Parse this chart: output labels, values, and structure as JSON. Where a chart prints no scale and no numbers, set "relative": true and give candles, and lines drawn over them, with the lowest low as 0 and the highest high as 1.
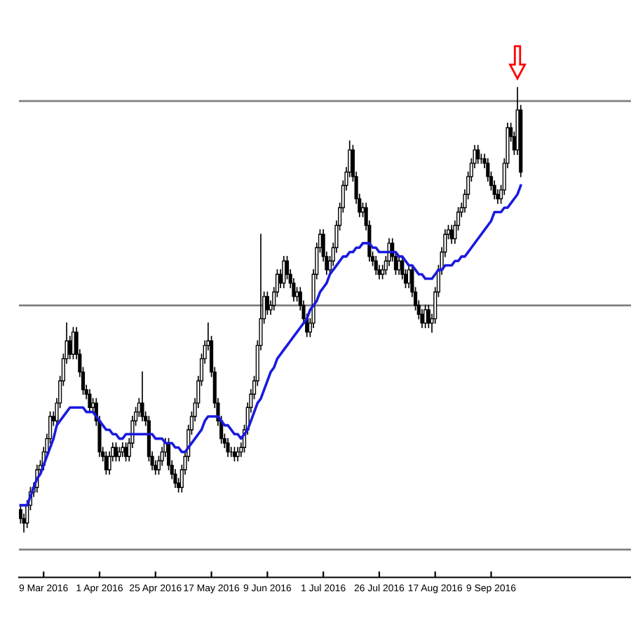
{
  "chart_data": {
    "type": "candlestick",
    "relative": true,
    "tick_labels": "x",
    "grid": false,
    "legend": false,
    "categories": [
      null,
      null,
      null,
      null,
      null,
      null,
      null,
      "9 Mar 2016",
      null,
      null,
      null,
      null,
      null,
      null,
      null,
      null,
      null,
      null,
      null,
      null,
      null,
      null,
      null,
      null,
      "1 Apr 2016",
      null,
      null,
      null,
      null,
      null,
      null,
      null,
      null,
      null,
      null,
      null,
      null,
      null,
      null,
      null,
      null,
      "25 Apr 2016",
      null,
      null,
      null,
      null,
      null,
      null,
      null,
      null,
      null,
      null,
      null,
      null,
      null,
      null,
      null,
      null,
      "17 May 2016",
      null,
      null,
      null,
      null,
      null,
      null,
      null,
      null,
      null,
      null,
      null,
      null,
      null,
      null,
      null,
      null,
      "9 Jun 2016",
      null,
      null,
      null,
      null,
      null,
      null,
      null,
      null,
      null,
      null,
      null,
      null,
      null,
      null,
      null,
      null,
      "1 Jul 2016",
      null,
      null,
      null,
      null,
      null,
      null,
      null,
      null,
      null,
      null,
      null,
      null,
      null,
      null,
      null,
      null,
      "26 Jul 2016",
      null,
      null,
      null,
      null,
      null,
      null,
      null,
      null,
      null,
      null,
      null,
      null,
      null,
      null,
      null,
      null,
      "17 Aug 2016",
      null,
      null,
      null,
      null,
      null,
      null,
      null,
      null,
      null,
      null,
      null,
      null,
      null,
      null,
      null,
      null,
      "9 Sep 2016",
      null,
      null,
      null,
      null,
      null,
      null,
      null,
      null,
      null,
      null,
      null,
      null,
      null,
      null,
      null,
      null,
      null,
      null,
      null,
      null,
      null,
      null,
      null,
      null,
      null,
      null,
      null,
      null,
      null,
      null,
      null,
      null,
      null,
      null,
      null,
      null,
      null,
      null,
      null,
      null,
      null,
      null
    ],
    "ohlc": [
      [
        0.05,
        0.06,
        0.02,
        0.03
      ],
      [
        0.03,
        0.04,
        0.0,
        0.02
      ],
      [
        0.02,
        0.07,
        0.01,
        0.06
      ],
      [
        0.06,
        0.1,
        0.05,
        0.09
      ],
      [
        0.09,
        0.11,
        0.08,
        0.1
      ],
      [
        0.1,
        0.15,
        0.09,
        0.14
      ],
      [
        0.14,
        0.16,
        0.13,
        0.15
      ],
      [
        0.15,
        0.19,
        0.14,
        0.18
      ],
      [
        0.18,
        0.22,
        0.17,
        0.21
      ],
      [
        0.21,
        0.27,
        0.2,
        0.26
      ],
      [
        0.26,
        0.27,
        0.24,
        0.25
      ],
      [
        0.25,
        0.3,
        0.24,
        0.29
      ],
      [
        0.29,
        0.35,
        0.28,
        0.34
      ],
      [
        0.34,
        0.4,
        0.33,
        0.39
      ],
      [
        0.39,
        0.47,
        0.38,
        0.43
      ],
      [
        0.43,
        0.44,
        0.39,
        0.4
      ],
      [
        0.4,
        0.46,
        0.39,
        0.45
      ],
      [
        0.45,
        0.46,
        0.39,
        0.4
      ],
      [
        0.4,
        0.41,
        0.35,
        0.36
      ],
      [
        0.36,
        0.37,
        0.31,
        0.32
      ],
      [
        0.32,
        0.33,
        0.3,
        0.31
      ],
      [
        0.31,
        0.32,
        0.27,
        0.28
      ],
      [
        0.28,
        0.3,
        0.27,
        0.29
      ],
      [
        0.29,
        0.3,
        0.24,
        0.25
      ],
      [
        0.25,
        0.26,
        0.17,
        0.18
      ],
      [
        0.18,
        0.19,
        0.16,
        0.17
      ],
      [
        0.17,
        0.18,
        0.13,
        0.14
      ],
      [
        0.14,
        0.18,
        0.13,
        0.17
      ],
      [
        0.17,
        0.2,
        0.16,
        0.19
      ],
      [
        0.19,
        0.2,
        0.16,
        0.17
      ],
      [
        0.17,
        0.19,
        0.16,
        0.18
      ],
      [
        0.18,
        0.2,
        0.17,
        0.19
      ],
      [
        0.19,
        0.2,
        0.16,
        0.17
      ],
      [
        0.17,
        0.21,
        0.16,
        0.2
      ],
      [
        0.2,
        0.26,
        0.19,
        0.25
      ],
      [
        0.25,
        0.28,
        0.24,
        0.27
      ],
      [
        0.27,
        0.3,
        0.26,
        0.29
      ],
      [
        0.29,
        0.36,
        0.25,
        0.26
      ],
      [
        0.26,
        0.27,
        0.24,
        0.25
      ],
      [
        0.25,
        0.26,
        0.16,
        0.17
      ],
      [
        0.17,
        0.18,
        0.14,
        0.15
      ],
      [
        0.15,
        0.16,
        0.13,
        0.14
      ],
      [
        0.14,
        0.17,
        0.13,
        0.16
      ],
      [
        0.16,
        0.19,
        0.15,
        0.18
      ],
      [
        0.18,
        0.21,
        0.17,
        0.2
      ],
      [
        0.2,
        0.21,
        0.14,
        0.15
      ],
      [
        0.15,
        0.16,
        0.12,
        0.13
      ],
      [
        0.13,
        0.14,
        0.1,
        0.11
      ],
      [
        0.11,
        0.12,
        0.09,
        0.1
      ],
      [
        0.1,
        0.15,
        0.09,
        0.14
      ],
      [
        0.14,
        0.18,
        0.13,
        0.17
      ],
      [
        0.17,
        0.24,
        0.16,
        0.23
      ],
      [
        0.23,
        0.27,
        0.22,
        0.26
      ],
      [
        0.26,
        0.3,
        0.25,
        0.29
      ],
      [
        0.29,
        0.35,
        0.28,
        0.34
      ],
      [
        0.34,
        0.4,
        0.33,
        0.39
      ],
      [
        0.39,
        0.43,
        0.38,
        0.42
      ],
      [
        0.42,
        0.47,
        0.41,
        0.43
      ],
      [
        0.43,
        0.44,
        0.35,
        0.36
      ],
      [
        0.36,
        0.37,
        0.28,
        0.29
      ],
      [
        0.29,
        0.3,
        0.24,
        0.25
      ],
      [
        0.25,
        0.26,
        0.2,
        0.21
      ],
      [
        0.21,
        0.22,
        0.19,
        0.2
      ],
      [
        0.2,
        0.21,
        0.17,
        0.18
      ],
      [
        0.18,
        0.19,
        0.17,
        0.18
      ],
      [
        0.18,
        0.19,
        0.16,
        0.17
      ],
      [
        0.17,
        0.19,
        0.16,
        0.18
      ],
      [
        0.18,
        0.2,
        0.17,
        0.19
      ],
      [
        0.19,
        0.24,
        0.18,
        0.23
      ],
      [
        0.23,
        0.29,
        0.22,
        0.28
      ],
      [
        0.28,
        0.32,
        0.27,
        0.31
      ],
      [
        0.31,
        0.35,
        0.3,
        0.34
      ],
      [
        0.34,
        0.43,
        0.33,
        0.42
      ],
      [
        0.42,
        0.67,
        0.41,
        0.48
      ],
      [
        0.48,
        0.54,
        0.47,
        0.53
      ],
      [
        0.53,
        0.54,
        0.49,
        0.5
      ],
      [
        0.5,
        0.52,
        0.49,
        0.51
      ],
      [
        0.51,
        0.55,
        0.5,
        0.54
      ],
      [
        0.54,
        0.59,
        0.53,
        0.58
      ],
      [
        0.58,
        0.59,
        0.55,
        0.56
      ],
      [
        0.56,
        0.62,
        0.55,
        0.61
      ],
      [
        0.61,
        0.62,
        0.57,
        0.58
      ],
      [
        0.58,
        0.59,
        0.55,
        0.56
      ],
      [
        0.56,
        0.57,
        0.52,
        0.53
      ],
      [
        0.53,
        0.55,
        0.52,
        0.54
      ],
      [
        0.54,
        0.55,
        0.5,
        0.51
      ],
      [
        0.51,
        0.52,
        0.47,
        0.48
      ],
      [
        0.48,
        0.49,
        0.44,
        0.45
      ],
      [
        0.45,
        0.48,
        0.44,
        0.47
      ],
      [
        0.47,
        0.59,
        0.46,
        0.58
      ],
      [
        0.58,
        0.65,
        0.57,
        0.64
      ],
      [
        0.64,
        0.68,
        0.63,
        0.67
      ],
      [
        0.67,
        0.68,
        0.61,
        0.62
      ],
      [
        0.62,
        0.63,
        0.58,
        0.59
      ],
      [
        0.59,
        0.62,
        0.58,
        0.61
      ],
      [
        0.61,
        0.65,
        0.6,
        0.64
      ],
      [
        0.64,
        0.7,
        0.63,
        0.69
      ],
      [
        0.69,
        0.74,
        0.68,
        0.73
      ],
      [
        0.73,
        0.79,
        0.72,
        0.78
      ],
      [
        0.78,
        0.82,
        0.77,
        0.81
      ],
      [
        0.81,
        0.88,
        0.8,
        0.86
      ],
      [
        0.86,
        0.87,
        0.79,
        0.8
      ],
      [
        0.8,
        0.81,
        0.74,
        0.75
      ],
      [
        0.75,
        0.76,
        0.71,
        0.72
      ],
      [
        0.72,
        0.74,
        0.71,
        0.73
      ],
      [
        0.73,
        0.74,
        0.68,
        0.69
      ],
      [
        0.69,
        0.7,
        0.61,
        0.62
      ],
      [
        0.62,
        0.63,
        0.6,
        0.61
      ],
      [
        0.61,
        0.62,
        0.58,
        0.59
      ],
      [
        0.59,
        0.6,
        0.57,
        0.58
      ],
      [
        0.58,
        0.6,
        0.57,
        0.59
      ],
      [
        0.59,
        0.62,
        0.58,
        0.61
      ],
      [
        0.61,
        0.66,
        0.6,
        0.65
      ],
      [
        0.65,
        0.66,
        0.61,
        0.62
      ],
      [
        0.62,
        0.63,
        0.58,
        0.59
      ],
      [
        0.59,
        0.62,
        0.58,
        0.61
      ],
      [
        0.61,
        0.62,
        0.57,
        0.58
      ],
      [
        0.58,
        0.59,
        0.55,
        0.56
      ],
      [
        0.56,
        0.6,
        0.55,
        0.59
      ],
      [
        0.59,
        0.6,
        0.53,
        0.54
      ],
      [
        0.54,
        0.55,
        0.5,
        0.51
      ],
      [
        0.51,
        0.52,
        0.48,
        0.49
      ],
      [
        0.49,
        0.5,
        0.46,
        0.47
      ],
      [
        0.47,
        0.51,
        0.46,
        0.5
      ],
      [
        0.5,
        0.51,
        0.46,
        0.47
      ],
      [
        0.47,
        0.49,
        0.45,
        0.48
      ],
      [
        0.48,
        0.55,
        0.47,
        0.54
      ],
      [
        0.54,
        0.6,
        0.53,
        0.59
      ],
      [
        0.59,
        0.64,
        0.58,
        0.63
      ],
      [
        0.63,
        0.68,
        0.62,
        0.67
      ],
      [
        0.67,
        0.69,
        0.66,
        0.68
      ],
      [
        0.68,
        0.69,
        0.65,
        0.66
      ],
      [
        0.66,
        0.7,
        0.65,
        0.69
      ],
      [
        0.69,
        0.73,
        0.68,
        0.72
      ],
      [
        0.72,
        0.74,
        0.71,
        0.73
      ],
      [
        0.73,
        0.77,
        0.72,
        0.76
      ],
      [
        0.76,
        0.81,
        0.75,
        0.8
      ],
      [
        0.8,
        0.84,
        0.79,
        0.83
      ],
      [
        0.83,
        0.87,
        0.82,
        0.86
      ],
      [
        0.86,
        0.87,
        0.83,
        0.84
      ],
      [
        0.84,
        0.85,
        0.83,
        0.84
      ],
      [
        0.84,
        0.85,
        0.82,
        0.83
      ],
      [
        0.83,
        0.84,
        0.79,
        0.8
      ],
      [
        0.8,
        0.81,
        0.77,
        0.78
      ],
      [
        0.78,
        0.79,
        0.75,
        0.76
      ],
      [
        0.76,
        0.77,
        0.74,
        0.75
      ],
      [
        0.75,
        0.78,
        0.74,
        0.77
      ],
      [
        0.77,
        0.84,
        0.76,
        0.83
      ],
      [
        0.83,
        0.92,
        0.82,
        0.91
      ],
      [
        0.91,
        0.92,
        0.88,
        0.89
      ],
      [
        0.89,
        0.9,
        0.85,
        0.86
      ],
      [
        0.86,
        1.0,
        0.85,
        0.95
      ],
      [
        0.95,
        0.96,
        0.8,
        0.81
      ],
      null,
      null,
      null,
      null,
      null,
      null,
      null,
      null,
      null,
      null,
      null,
      null,
      null,
      null,
      null,
      null,
      null,
      null,
      null,
      null,
      null,
      null,
      null,
      null,
      null,
      null,
      null,
      null,
      null,
      null,
      null,
      null,
      null
    ],
    "series": [
      {
        "type": "line",
        "color": "#1a1ae0",
        "values": [
          0.06,
          0.06,
          0.06,
          0.08,
          0.1,
          0.12,
          0.13,
          0.15,
          0.17,
          0.19,
          0.21,
          0.24,
          0.25,
          0.26,
          0.27,
          0.28,
          0.28,
          0.28,
          0.28,
          0.28,
          0.27,
          0.27,
          0.27,
          0.26,
          0.25,
          0.24,
          0.23,
          0.23,
          0.22,
          0.22,
          0.21,
          0.21,
          0.22,
          0.22,
          0.22,
          0.22,
          0.22,
          0.22,
          0.22,
          0.22,
          0.22,
          0.21,
          0.21,
          0.21,
          0.2,
          0.2,
          0.2,
          0.19,
          0.19,
          0.18,
          0.18,
          0.19,
          0.2,
          0.21,
          0.22,
          0.23,
          0.25,
          0.26,
          0.26,
          0.26,
          0.26,
          0.25,
          0.24,
          0.24,
          0.23,
          0.22,
          0.22,
          0.21,
          0.22,
          0.23,
          0.25,
          0.27,
          0.29,
          0.3,
          0.32,
          0.34,
          0.36,
          0.37,
          0.39,
          0.4,
          0.41,
          0.42,
          0.43,
          0.44,
          0.45,
          0.46,
          0.47,
          0.48,
          0.5,
          0.51,
          0.52,
          0.54,
          0.55,
          0.56,
          0.58,
          0.59,
          0.6,
          0.61,
          0.62,
          0.62,
          0.63,
          0.63,
          0.64,
          0.64,
          0.65,
          0.65,
          0.65,
          0.64,
          0.64,
          0.63,
          0.63,
          0.63,
          0.63,
          0.63,
          0.63,
          0.62,
          0.62,
          0.61,
          0.6,
          0.6,
          0.59,
          0.58,
          0.58,
          0.57,
          0.57,
          0.57,
          0.58,
          0.59,
          0.59,
          0.6,
          0.6,
          0.6,
          0.61,
          0.61,
          0.62,
          0.62,
          0.63,
          0.64,
          0.65,
          0.66,
          0.67,
          0.68,
          0.69,
          0.7,
          0.72,
          0.72,
          0.72,
          0.73,
          0.73,
          0.74,
          0.75,
          0.76,
          0.78,
          null,
          null,
          null,
          null,
          null,
          null,
          null,
          null,
          null,
          null,
          null,
          null,
          null,
          null,
          null,
          null,
          null,
          null,
          null,
          null,
          null,
          null,
          null,
          null,
          null,
          null,
          null,
          null,
          null,
          null,
          null,
          null,
          null
        ]
      }
    ],
    "ref_lines": [
      {
        "axis": "y",
        "value": 0.97,
        "color": "#808080"
      },
      {
        "axis": "y",
        "value": 0.51,
        "color": "#808080"
      },
      {
        "axis": "y",
        "value": -0.04,
        "color": "#808080"
      }
    ]
  }
}
